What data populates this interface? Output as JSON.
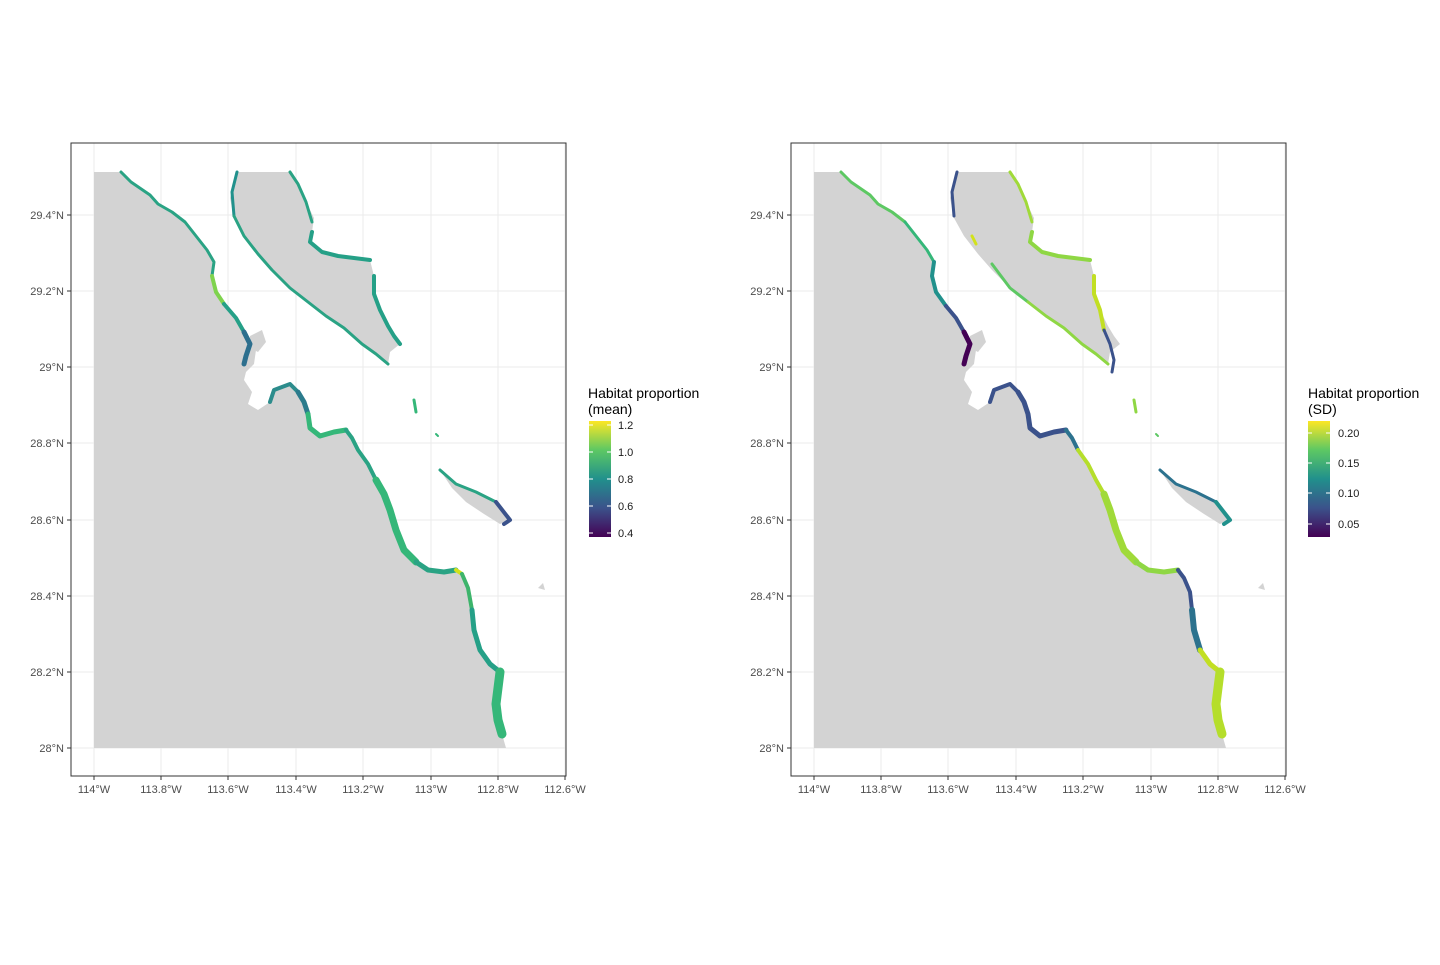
{
  "maps": [
    {
      "id": "mean",
      "legend": {
        "title_line1": "Habitat proportion",
        "title_line2": "(mean)",
        "labels": [
          "1.2",
          "1.0",
          "0.8",
          "0.6",
          "0.4"
        ]
      }
    },
    {
      "id": "sd",
      "legend": {
        "title_line1": "Habitat proportion",
        "title_line2": "(SD)",
        "labels": [
          "0.20",
          "0.15",
          "0.10",
          "0.05"
        ]
      }
    }
  ],
  "axes": {
    "y_labels": [
      "29.4°N",
      "29.2°N",
      "29°N",
      "28.8°N",
      "28.6°N",
      "28.4°N",
      "28.2°N",
      "28°N"
    ],
    "x_labels": [
      "114°W",
      "113.8°W",
      "113.6°W",
      "113.4°W",
      "113.2°W",
      "113°W",
      "112.8°W",
      "112.6°W"
    ]
  },
  "colors": {
    "land": "#d3d3d3",
    "grid": "#ebebeb",
    "panel_border": "#333333",
    "viridis": [
      "#440154",
      "#3b528b",
      "#21908c",
      "#5dc863",
      "#fde725"
    ]
  }
}
